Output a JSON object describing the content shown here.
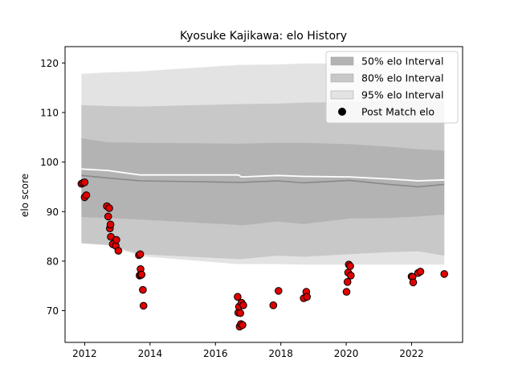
{
  "chart_data": {
    "type": "line",
    "title": "Kyosuke Kajikawa: elo History",
    "xlabel": "",
    "ylabel": "elo score",
    "xlim": [
      2011.4,
      2023.56
    ],
    "ylim": [
      63.6,
      123.3
    ],
    "x_ticks": [
      2012,
      2014,
      2016,
      2018,
      2020,
      2022
    ],
    "y_ticks": [
      70,
      80,
      90,
      100,
      110,
      120
    ],
    "grid": false,
    "legend": {
      "placement": "top-right",
      "entries": [
        {
          "label": "50% elo Interval",
          "color": "#b3b3b3"
        },
        {
          "label": "80% elo Interval",
          "color": "#c8c8c8"
        },
        {
          "label": "95% elo Interval",
          "color": "#e3e3e3"
        },
        {
          "label": "Post Match elo",
          "color": "#000000"
        }
      ]
    },
    "colors": {
      "band50": "#b3b3b3",
      "band80": "#c8c8c8",
      "band95": "#e3e3e3",
      "mean_line": "#ffffff",
      "median_line": "#888888",
      "point_fill": "#e00000",
      "point_edge": "#000000"
    },
    "intervals": {
      "x": [
        2011.9,
        2012.7,
        2013.7,
        2016.7,
        2016.8,
        2017.9,
        2018.7,
        2020.1,
        2021.3,
        2022.2,
        2023.0
      ],
      "upper95": [
        117.8,
        118.1,
        118.3,
        119.6,
        119.6,
        119.7,
        119.9,
        119.9,
        119.8,
        119.8,
        119.8
      ],
      "upper80": [
        111.5,
        111.3,
        111.2,
        111.7,
        111.7,
        111.8,
        112.0,
        112.1,
        112.3,
        112.5,
        112.2
      ],
      "upper50": [
        104.8,
        104.0,
        103.9,
        103.7,
        103.7,
        103.9,
        103.9,
        103.6,
        103.1,
        102.6,
        102.3
      ],
      "mean": [
        98.6,
        98.3,
        97.4,
        97.4,
        97.0,
        97.3,
        97.1,
        97.0,
        96.6,
        96.2,
        96.4
      ],
      "median": [
        97.3,
        96.8,
        96.2,
        95.9,
        95.9,
        96.2,
        95.8,
        96.3,
        95.5,
        95.0,
        95.5
      ],
      "lower50": [
        88.9,
        88.7,
        88.4,
        87.3,
        87.2,
        88.0,
        87.5,
        88.6,
        88.7,
        89.0,
        89.4
      ],
      "lower80": [
        83.6,
        83.3,
        81.4,
        80.4,
        80.4,
        81.1,
        80.9,
        81.4,
        81.8,
        82.0,
        81.1
      ],
      "lower95": [
        83.6,
        83.2,
        81.0,
        79.4,
        79.4,
        79.4,
        79.3,
        79.3,
        79.3,
        79.3,
        79.3
      ]
    },
    "points": {
      "x": [
        2011.9,
        2011.95,
        2012.0,
        2012.0,
        2012.05,
        2012.68,
        2012.72,
        2012.75,
        2012.77,
        2012.79,
        2012.8,
        2012.86,
        2012.95,
        2012.97,
        2013.03,
        2013.66,
        2013.68,
        2013.7,
        2013.71,
        2013.72,
        2013.74,
        2013.78,
        2013.8,
        2016.68,
        2016.7,
        2016.72,
        2016.74,
        2016.76,
        2016.78,
        2016.8,
        2016.83,
        2016.85,
        2017.77,
        2017.93,
        2018.7,
        2018.78,
        2018.8,
        2020.01,
        2020.04,
        2020.06,
        2020.08,
        2020.12,
        2020.14,
        2022.0,
        2022.03,
        2022.05,
        2022.2,
        2022.27,
        2023.0
      ],
      "y": [
        95.6,
        95.8,
        95.9,
        92.9,
        93.3,
        91.1,
        89.0,
        90.7,
        86.6,
        87.4,
        84.9,
        83.4,
        83.1,
        84.3,
        82.1,
        81.2,
        77.1,
        81.4,
        78.4,
        77.2,
        77.3,
        74.2,
        71.0,
        72.8,
        69.6,
        70.8,
        66.8,
        69.5,
        67.3,
        71.6,
        67.1,
        71.1,
        71.1,
        74.0,
        72.5,
        73.8,
        72.8,
        73.8,
        75.8,
        77.7,
        79.3,
        79.0,
        77.1,
        76.9,
        76.8,
        75.7,
        77.6,
        77.9,
        77.4
      ]
    }
  }
}
